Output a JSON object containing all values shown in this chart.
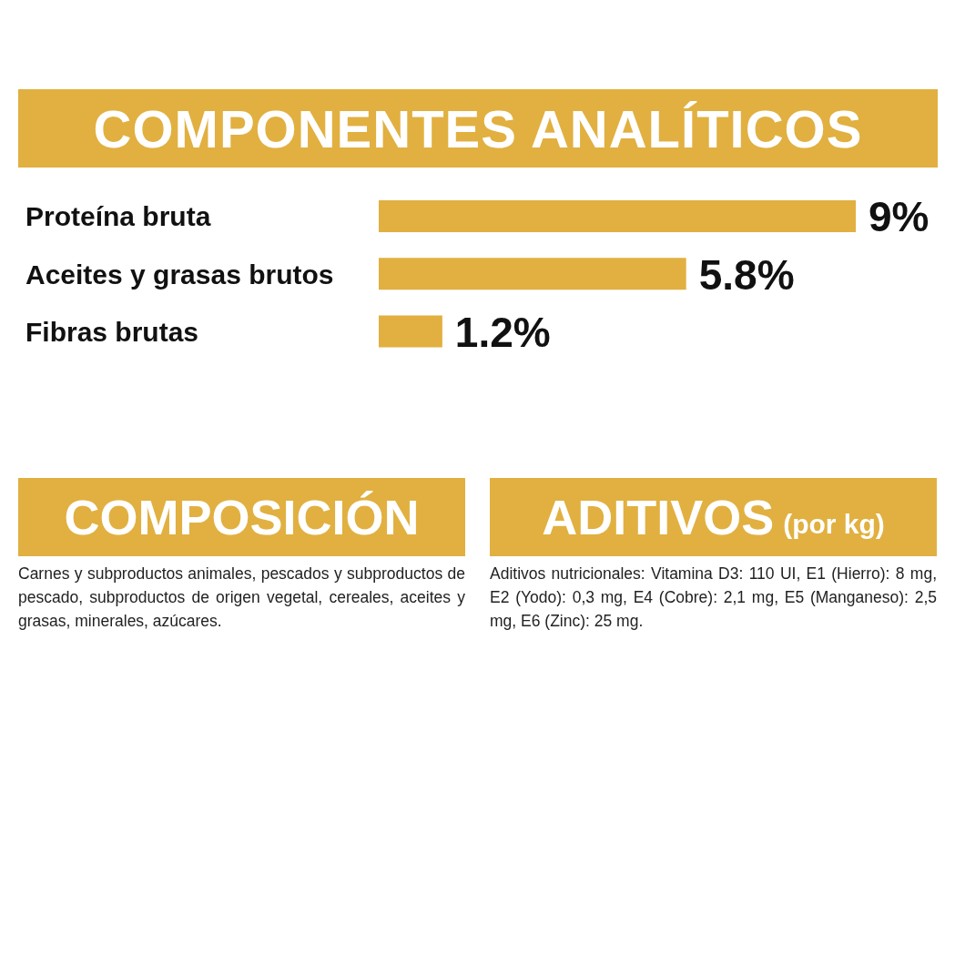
{
  "chart_data": [
    {
      "type": "bar",
      "orientation": "horizontal",
      "title": "COMPONENTES ANALÍTICOS",
      "categories": [
        "Proteína bruta",
        "Aceites y grasas brutos",
        "Fibras brutas"
      ],
      "values": [
        9,
        5.8,
        1.2
      ],
      "value_labels": [
        "9%",
        "5.8%",
        "1.2%"
      ],
      "color": "#e1b040",
      "grid": false,
      "legend": false
    },
    {
      "type": "other",
      "title": "COMPOSICIÓN",
      "annotations": [
        "Carnes y subproductos animales, pescados y subproductos de pescado, subproductos de origen vegetal, cereales, aceites y grasas, minerales, azúcares."
      ]
    },
    {
      "type": "other",
      "title": "ADITIVOS",
      "subtitle": "(por kg)",
      "annotations": [
        "Aditivos nutricionales: Vitamina D3: 110 UI, E1 (Hierro): 8 mg, E2 (Yodo): 0,3 mg, E4 (Cobre): 2,1 mg, E5 (Manganeso): 2,5 mg, E6 (Zinc): 25 mg."
      ]
    }
  ]
}
